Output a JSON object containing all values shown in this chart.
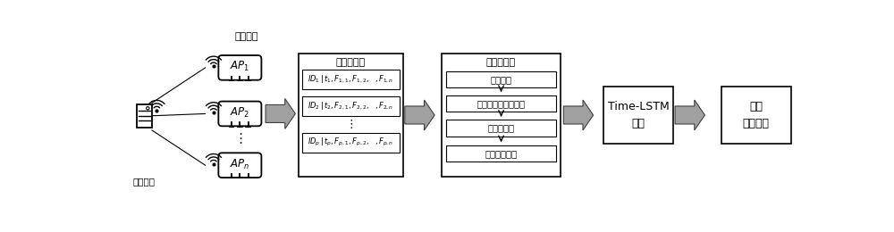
{
  "fig_width": 10.0,
  "fig_height": 2.6,
  "dpi": 100,
  "bg_color": "#ffffff",
  "label_jiedian": "接收节点",
  "label_yidong": "移动终端",
  "raw_data_title": "原始数据集",
  "preprocess_title": "数据预处理",
  "preprocess_steps": [
    "数据筛选",
    "均衡数据、扩充样本",
    "划分数据集",
    "归一化等处理"
  ],
  "model_label_line1": "Time-LSTM",
  "model_label_line2": "模型",
  "output_label_line1": "输出",
  "output_label_line2": "预测类别",
  "text_color": "#000000",
  "box_edge_color": "#000000",
  "box_face_color": "#ffffff"
}
